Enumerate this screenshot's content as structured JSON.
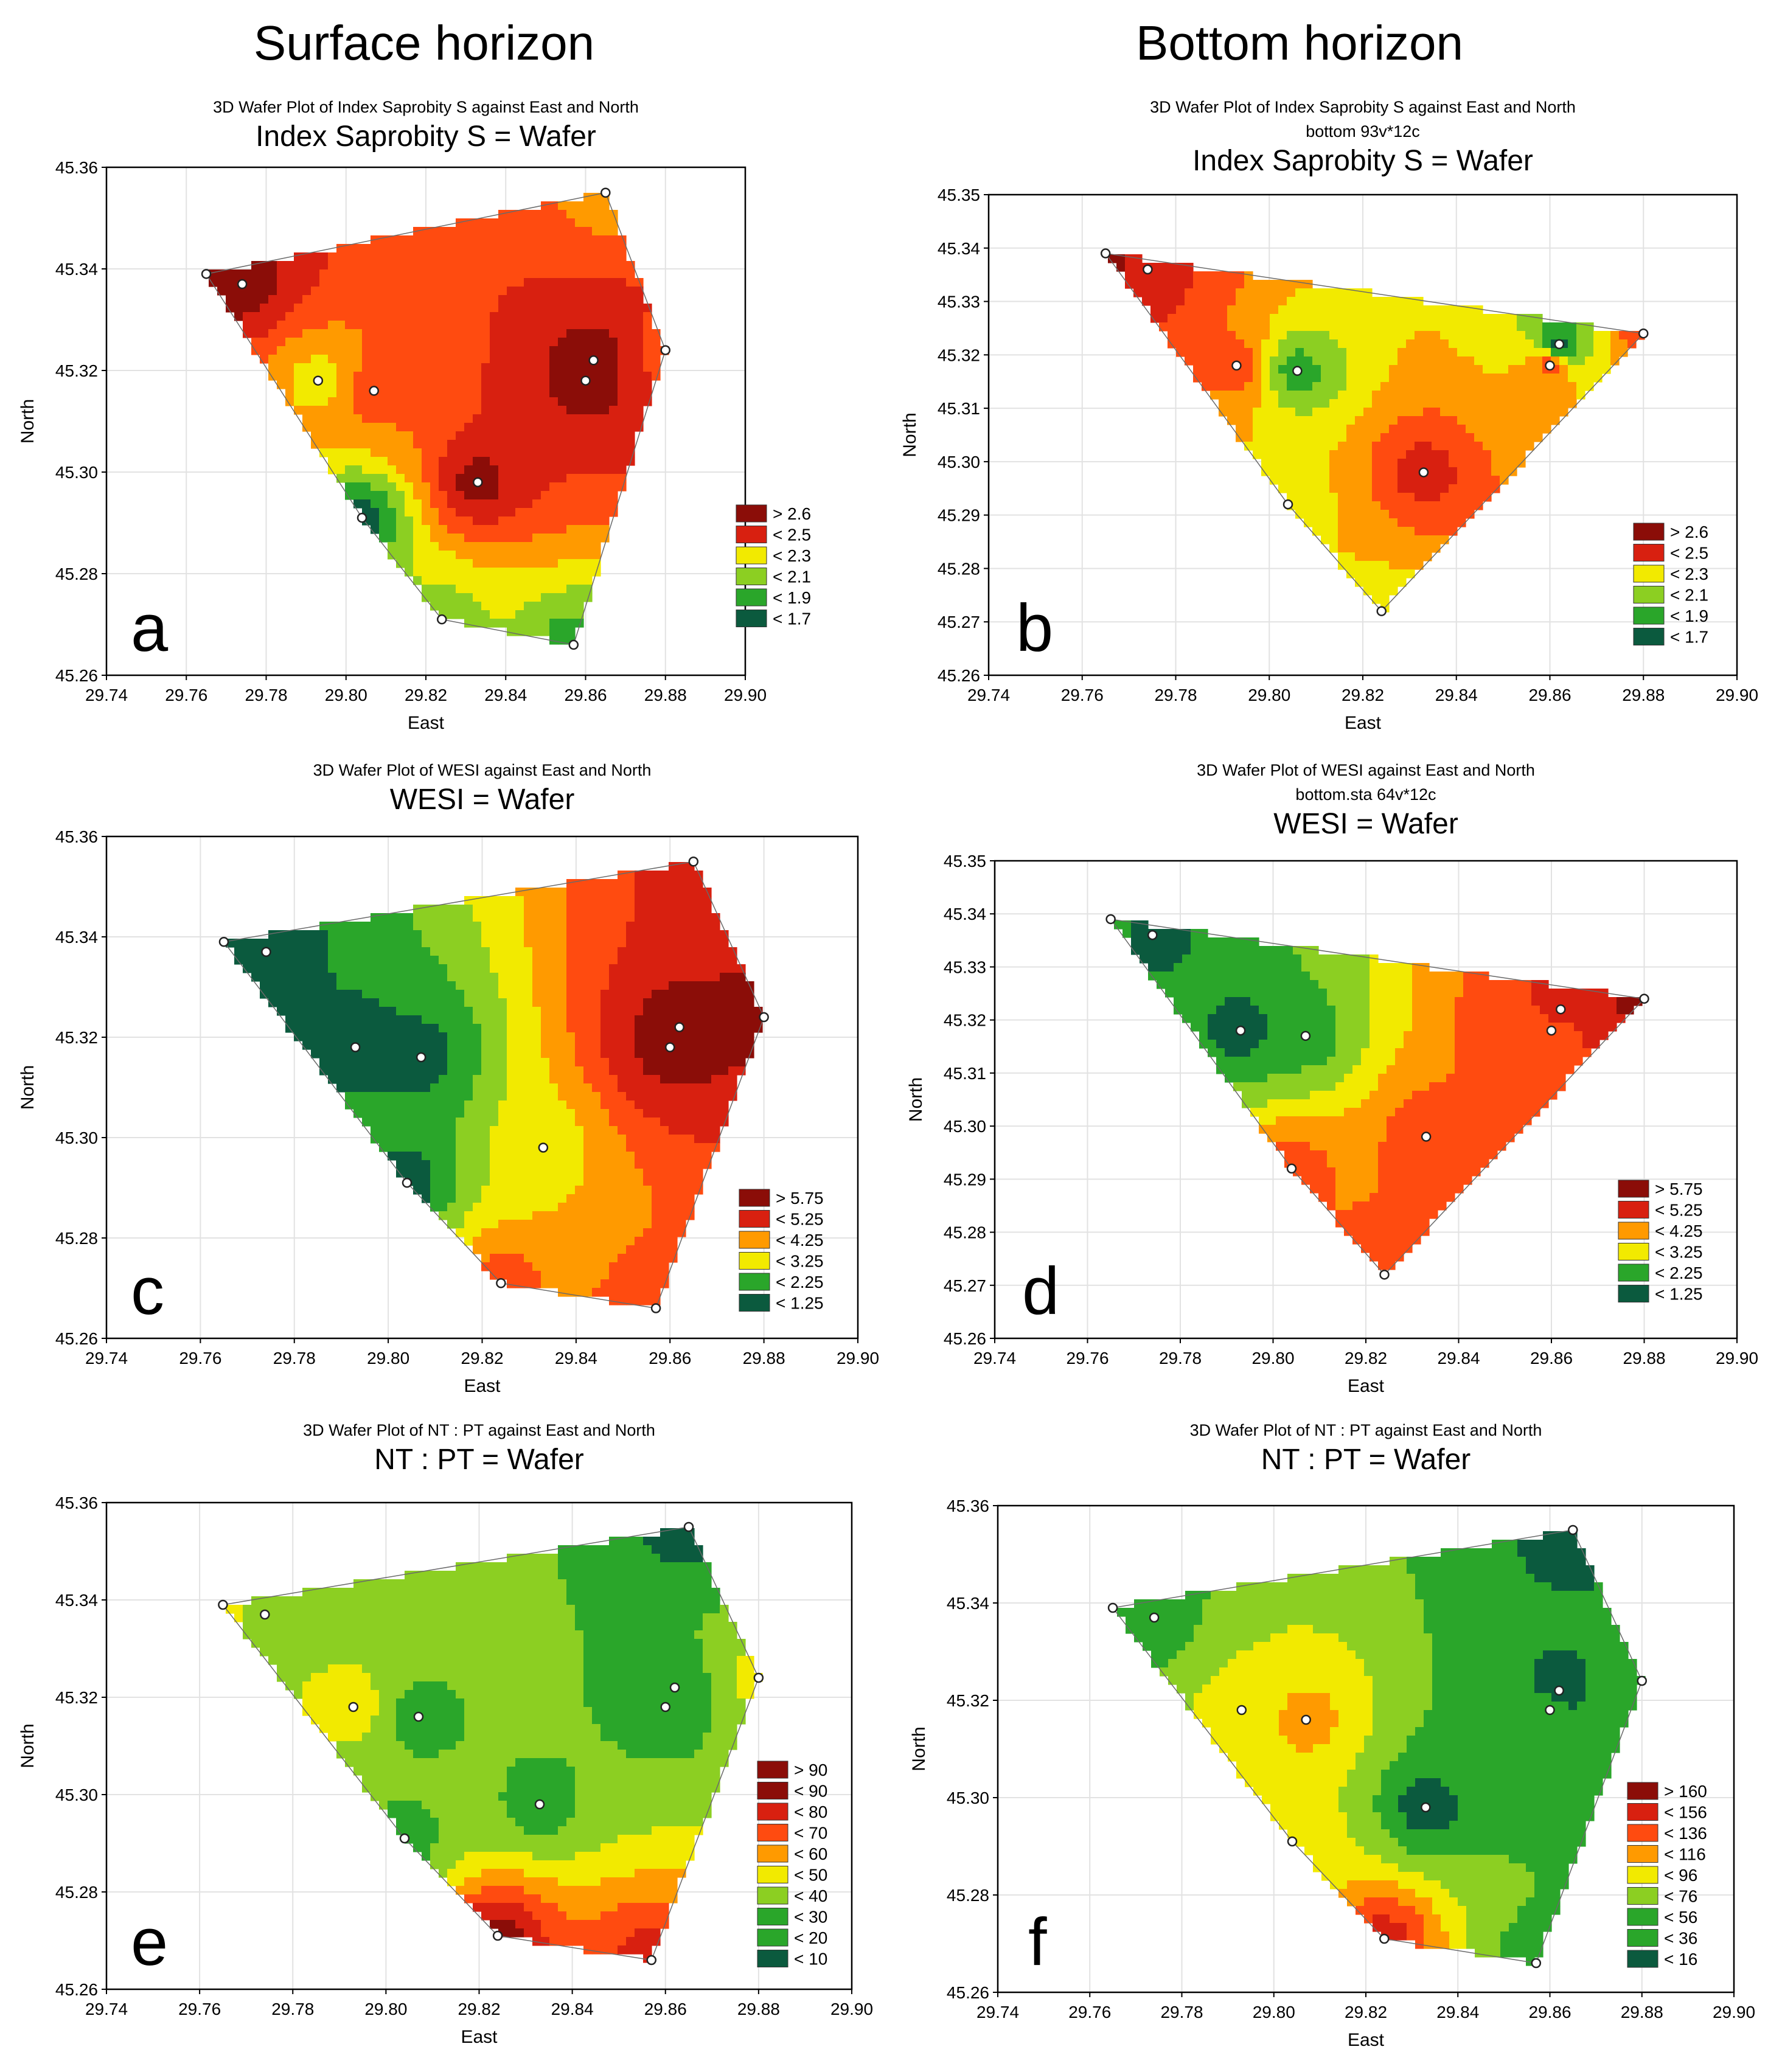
{
  "headings": {
    "left": "Surface horizon",
    "right": "Bottom horizon"
  },
  "colors": {
    "c1": "#0b5a3e",
    "c2": "#2aa62a",
    "c3": "#8ccf22",
    "c4": "#f2ea00",
    "c5": "#ff9a00",
    "c6": "#ff4b10",
    "c7": "#d82010",
    "c8": "#8b0d08",
    "frame": "#000000",
    "grid": "#e2e2e2"
  },
  "chart_data": [
    {
      "id": "a",
      "type": "heatmap",
      "title": "3D Wafer Plot of Index Saprobity S against East and North",
      "subtitle": "",
      "main_title": "Index Saprobity S = Wafer",
      "panel_letter": "a",
      "xlabel": "East",
      "ylabel": "North",
      "xlim": [
        29.74,
        29.9
      ],
      "ylim": [
        45.26,
        45.36
      ],
      "xticks": [
        "29.74",
        "29.76",
        "29.78",
        "29.80",
        "29.82",
        "29.84",
        "29.86",
        "29.88",
        "29.90"
      ],
      "yticks": [
        "45.26",
        "45.28",
        "45.30",
        "45.32",
        "45.34",
        "45.36"
      ],
      "legend": [
        "> 2.6",
        "< 2.5",
        "< 2.3",
        "< 2.1",
        "< 1.9",
        "< 1.7"
      ],
      "legend_levels": [
        8,
        7,
        4,
        3,
        2,
        1
      ],
      "points": [
        [
          29.765,
          45.339,
          8
        ],
        [
          29.774,
          45.337,
          8
        ],
        [
          29.793,
          45.318,
          4
        ],
        [
          29.807,
          45.316,
          6
        ],
        [
          29.804,
          45.291,
          1
        ],
        [
          29.824,
          45.271,
          3
        ],
        [
          29.833,
          45.298,
          8
        ],
        [
          29.857,
          45.266,
          2
        ],
        [
          29.86,
          45.318,
          8
        ],
        [
          29.862,
          45.322,
          8
        ],
        [
          29.865,
          45.355,
          5
        ],
        [
          29.88,
          45.324,
          6
        ]
      ],
      "hull": [
        [
          29.765,
          45.339
        ],
        [
          29.865,
          45.355
        ],
        [
          29.88,
          45.324
        ],
        [
          29.857,
          45.266
        ],
        [
          29.824,
          45.271
        ],
        [
          29.804,
          45.291
        ]
      ]
    },
    {
      "id": "b",
      "type": "heatmap",
      "title": "3D Wafer Plot of Index Saprobity S against East and North",
      "subtitle": "bottom 93v*12c",
      "main_title": "Index Saprobity S = Wafer",
      "panel_letter": "b",
      "xlabel": "East",
      "ylabel": "North",
      "xlim": [
        29.74,
        29.9
      ],
      "ylim": [
        45.26,
        45.35
      ],
      "xticks": [
        "29.74",
        "29.76",
        "29.78",
        "29.80",
        "29.82",
        "29.84",
        "29.86",
        "29.88",
        "29.90"
      ],
      "yticks": [
        "45.26",
        "45.27",
        "45.28",
        "45.29",
        "45.30",
        "45.31",
        "45.32",
        "45.33",
        "45.34",
        "45.35"
      ],
      "legend": [
        "> 2.6",
        "< 2.5",
        "< 2.3",
        "< 2.1",
        "< 1.9",
        "< 1.7"
      ],
      "legend_levels": [
        8,
        7,
        4,
        3,
        2,
        1
      ],
      "points": [
        [
          29.765,
          45.339,
          8
        ],
        [
          29.774,
          45.336,
          7
        ],
        [
          29.793,
          45.318,
          6
        ],
        [
          29.806,
          45.317,
          2
        ],
        [
          29.804,
          45.292,
          4
        ],
        [
          29.824,
          45.272,
          4
        ],
        [
          29.833,
          45.298,
          7
        ],
        [
          29.86,
          45.318,
          6
        ],
        [
          29.862,
          45.322,
          1
        ],
        [
          29.88,
          45.324,
          6
        ]
      ],
      "hull": [
        [
          29.765,
          45.339
        ],
        [
          29.88,
          45.324
        ],
        [
          29.824,
          45.272
        ],
        [
          29.804,
          45.292
        ]
      ]
    },
    {
      "id": "c",
      "type": "heatmap",
      "title": "3D Wafer Plot of WESI against East and North",
      "subtitle": "",
      "main_title": "WESI = Wafer",
      "panel_letter": "c",
      "xlabel": "East",
      "ylabel": "North",
      "xlim": [
        29.74,
        29.9
      ],
      "ylim": [
        45.26,
        45.36
      ],
      "xticks": [
        "29.74",
        "29.76",
        "29.78",
        "29.80",
        "29.82",
        "29.84",
        "29.86",
        "29.88",
        "29.90"
      ],
      "yticks": [
        "45.26",
        "45.28",
        "45.30",
        "45.32",
        "45.34",
        "45.36"
      ],
      "legend": [
        "> 5.75",
        "< 5.25",
        "< 4.25",
        "< 3.25",
        "< 2.25",
        "< 1.25"
      ],
      "legend_levels": [
        8,
        7,
        5,
        4,
        2,
        1
      ],
      "points": [
        [
          29.765,
          45.339,
          1
        ],
        [
          29.774,
          45.337,
          1
        ],
        [
          29.793,
          45.318,
          1
        ],
        [
          29.807,
          45.316,
          1
        ],
        [
          29.804,
          45.291,
          1
        ],
        [
          29.824,
          45.271,
          6
        ],
        [
          29.833,
          45.298,
          4
        ],
        [
          29.857,
          45.266,
          6
        ],
        [
          29.86,
          45.318,
          8
        ],
        [
          29.862,
          45.322,
          8
        ],
        [
          29.865,
          45.355,
          7
        ],
        [
          29.88,
          45.324,
          8
        ]
      ],
      "hull": [
        [
          29.765,
          45.339
        ],
        [
          29.865,
          45.355
        ],
        [
          29.88,
          45.324
        ],
        [
          29.857,
          45.266
        ],
        [
          29.824,
          45.271
        ],
        [
          29.804,
          45.291
        ]
      ]
    },
    {
      "id": "d",
      "type": "heatmap",
      "title": "3D Wafer Plot of WESI against East and North",
      "subtitle": "bottom.sta 64v*12c",
      "main_title": "WESI = Wafer",
      "panel_letter": "d",
      "xlabel": "East",
      "ylabel": "North",
      "xlim": [
        29.74,
        29.9
      ],
      "ylim": [
        45.26,
        45.35
      ],
      "xticks": [
        "29.74",
        "29.76",
        "29.78",
        "29.80",
        "29.82",
        "29.84",
        "29.86",
        "29.88",
        "29.90"
      ],
      "yticks": [
        "45.26",
        "45.27",
        "45.28",
        "45.29",
        "45.30",
        "45.31",
        "45.32",
        "45.33",
        "45.34",
        "45.35"
      ],
      "legend": [
        "> 5.75",
        "< 5.25",
        "< 4.25",
        "< 3.25",
        "< 2.25",
        "< 1.25"
      ],
      "legend_levels": [
        8,
        7,
        5,
        4,
        2,
        1
      ],
      "points": [
        [
          29.765,
          45.339,
          2
        ],
        [
          29.774,
          45.336,
          1
        ],
        [
          29.793,
          45.318,
          1
        ],
        [
          29.807,
          45.317,
          2
        ],
        [
          29.804,
          45.292,
          6
        ],
        [
          29.824,
          45.272,
          6
        ],
        [
          29.833,
          45.298,
          6
        ],
        [
          29.86,
          45.318,
          6
        ],
        [
          29.862,
          45.322,
          7
        ],
        [
          29.88,
          45.324,
          8
        ]
      ],
      "hull": [
        [
          29.765,
          45.339
        ],
        [
          29.88,
          45.324
        ],
        [
          29.824,
          45.272
        ],
        [
          29.804,
          45.292
        ]
      ]
    },
    {
      "id": "e",
      "type": "heatmap",
      "title": "3D Wafer Plot of NT : PT against East and North",
      "subtitle": "",
      "main_title": "NT : PT = Wafer",
      "panel_letter": "e",
      "xlabel": "East",
      "ylabel": "North",
      "xlim": [
        29.74,
        29.9
      ],
      "ylim": [
        45.26,
        45.36
      ],
      "xticks": [
        "29.74",
        "29.76",
        "29.78",
        "29.80",
        "29.82",
        "29.84",
        "29.86",
        "29.88",
        "29.90"
      ],
      "yticks": [
        "45.26",
        "45.28",
        "45.30",
        "45.32",
        "45.34",
        "45.36"
      ],
      "legend": [
        "> 90",
        "< 90",
        "< 80",
        "< 70",
        "< 60",
        "< 50",
        "< 40",
        "< 30",
        "< 20",
        "< 10"
      ],
      "legend_levels": [
        8,
        8,
        7,
        6,
        5,
        4,
        3,
        2,
        2,
        1
      ],
      "points": [
        [
          29.765,
          45.339,
          4
        ],
        [
          29.774,
          45.337,
          3
        ],
        [
          29.793,
          45.318,
          4
        ],
        [
          29.807,
          45.316,
          2
        ],
        [
          29.804,
          45.291,
          2
        ],
        [
          29.824,
          45.271,
          8
        ],
        [
          29.833,
          45.298,
          2
        ],
        [
          29.857,
          45.266,
          7
        ],
        [
          29.86,
          45.318,
          2
        ],
        [
          29.862,
          45.322,
          2
        ],
        [
          29.865,
          45.355,
          1
        ],
        [
          29.88,
          45.324,
          4
        ]
      ],
      "hull": [
        [
          29.765,
          45.339
        ],
        [
          29.865,
          45.355
        ],
        [
          29.88,
          45.324
        ],
        [
          29.857,
          45.266
        ],
        [
          29.824,
          45.271
        ],
        [
          29.804,
          45.291
        ]
      ]
    },
    {
      "id": "f",
      "type": "heatmap",
      "title": "3D Wafer Plot of NT : PT against East and North",
      "subtitle": "",
      "main_title": "NT : PT = Wafer",
      "panel_letter": "f",
      "xlabel": "East",
      "ylabel": "North",
      "xlim": [
        29.74,
        29.9
      ],
      "ylim": [
        45.26,
        45.36
      ],
      "xticks": [
        "29.74",
        "29.76",
        "29.78",
        "29.80",
        "29.82",
        "29.84",
        "29.86",
        "29.88",
        "29.90"
      ],
      "yticks": [
        "45.26",
        "45.28",
        "45.30",
        "45.32",
        "45.34",
        "45.36"
      ],
      "legend": [
        "> 160",
        "< 156",
        "< 136",
        "< 116",
        "< 96",
        "< 76",
        "< 56",
        "< 36",
        "< 16"
      ],
      "legend_levels": [
        8,
        7,
        6,
        5,
        4,
        3,
        2,
        2,
        1
      ],
      "points": [
        [
          29.765,
          45.339,
          2
        ],
        [
          29.774,
          45.337,
          2
        ],
        [
          29.793,
          45.318,
          4
        ],
        [
          29.807,
          45.316,
          5
        ],
        [
          29.804,
          45.291,
          4
        ],
        [
          29.824,
          45.271,
          7
        ],
        [
          29.833,
          45.298,
          1
        ],
        [
          29.857,
          45.266,
          2
        ],
        [
          29.86,
          45.318,
          2
        ],
        [
          29.862,
          45.322,
          1
        ],
        [
          29.865,
          45.355,
          1
        ],
        [
          29.88,
          45.324,
          2
        ]
      ],
      "hull": [
        [
          29.765,
          45.339
        ],
        [
          29.865,
          45.355
        ],
        [
          29.88,
          45.324
        ],
        [
          29.857,
          45.266
        ],
        [
          29.824,
          45.271
        ],
        [
          29.804,
          45.291
        ]
      ]
    }
  ]
}
